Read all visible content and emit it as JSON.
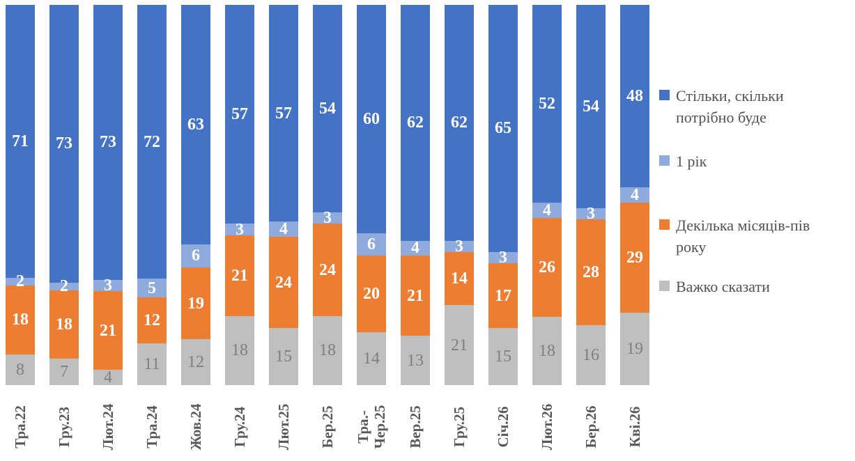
{
  "colors": {
    "blue": "#4472C4",
    "light_blue": "#8FAADC",
    "orange": "#ED7D31",
    "gray": "#BFBFBF",
    "gray_value_text": "#7F7F7F",
    "white_value_text": "#FFFFFF",
    "axis_text": "#595959",
    "legend_text": "#525252",
    "background": "#FFFFFF"
  },
  "chart_data": {
    "type": "bar",
    "variant": "stacked-100-column",
    "grid": false,
    "legend_position": "right",
    "categories": [
      "Тра.22",
      "Гру.23",
      "Лют.24",
      "Тра.24",
      "Жов.24",
      "Гру.24",
      "Лют.25",
      "Бер.25",
      "Тра.-\nЧер.25",
      "Вер.25",
      "Гру.25",
      "Січ.26",
      "Лют.26",
      "Бер.26",
      "Кві.26"
    ],
    "series": [
      {
        "name": "Важко сказати",
        "color": "#BFBFBF",
        "label_color": "#7F7F7F",
        "label_style": "dark",
        "values": [
          8,
          7,
          4,
          11,
          12,
          18,
          15,
          18,
          14,
          13,
          21,
          15,
          18,
          16,
          19
        ]
      },
      {
        "name": "Декілька місяців-пів року",
        "color": "#ED7D31",
        "label_color": "#FFFFFF",
        "label_style": "light",
        "values": [
          18,
          18,
          21,
          12,
          19,
          21,
          24,
          24,
          20,
          21,
          14,
          17,
          26,
          28,
          29
        ]
      },
      {
        "name": "1 рік",
        "color": "#8FAADC",
        "label_color": "#FFFFFF",
        "label_style": "light",
        "values": [
          2,
          2,
          3,
          5,
          6,
          3,
          4,
          3,
          6,
          4,
          3,
          3,
          4,
          3,
          4
        ]
      },
      {
        "name": "Стільки, скільки потрібно буде",
        "color": "#4472C4",
        "label_color": "#FFFFFF",
        "label_style": "light",
        "values": [
          71,
          73,
          73,
          72,
          63,
          57,
          57,
          54,
          60,
          62,
          62,
          65,
          52,
          54,
          48
        ]
      }
    ],
    "legend": [
      {
        "series": 3,
        "lines": [
          "Стільки, скільки",
          "потрібно буде"
        ]
      },
      {
        "series": 2,
        "lines": [
          "1 рік"
        ]
      },
      {
        "series": 1,
        "lines": [
          "Декілька місяців-пів",
          "року"
        ]
      },
      {
        "series": 0,
        "lines": [
          "Важко сказати"
        ]
      }
    ]
  }
}
